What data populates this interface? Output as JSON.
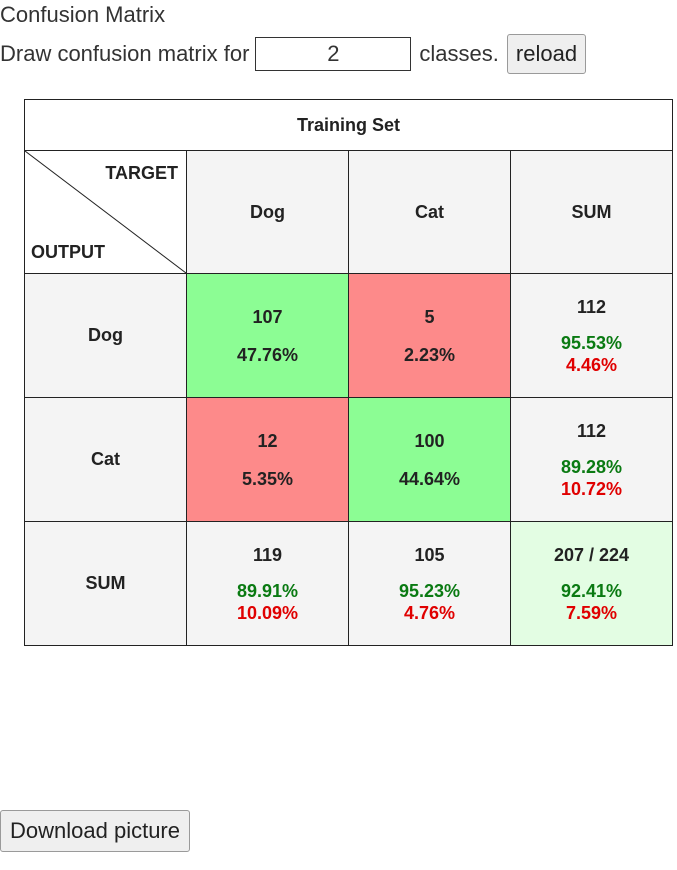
{
  "title": "Confusion Matrix",
  "controls": {
    "label_pre": "Draw confusion matrix for",
    "classes_value": "2",
    "label_post": "classes.",
    "reload_label": "reload"
  },
  "matrix": {
    "set_title": "Training Set",
    "target_label": "TARGET",
    "output_label": "OUTPUT",
    "columns": [
      "Dog",
      "Cat",
      "SUM"
    ],
    "rows": [
      {
        "label": "Dog",
        "cells": [
          {
            "count": "107",
            "pct": "47.76%"
          },
          {
            "count": "5",
            "pct": "2.23%"
          }
        ],
        "sum": {
          "count": "112",
          "good": "95.53%",
          "bad": "4.46%"
        }
      },
      {
        "label": "Cat",
        "cells": [
          {
            "count": "12",
            "pct": "5.35%"
          },
          {
            "count": "100",
            "pct": "44.64%"
          }
        ],
        "sum": {
          "count": "112",
          "good": "89.28%",
          "bad": "10.72%"
        }
      }
    ],
    "sum_row": {
      "label": "SUM",
      "cols": [
        {
          "count": "119",
          "good": "89.91%",
          "bad": "10.09%"
        },
        {
          "count": "105",
          "good": "95.23%",
          "bad": "4.76%"
        }
      ],
      "total": {
        "count": "207 / 224",
        "good": "92.41%",
        "bad": "7.59%"
      }
    },
    "colors": {
      "correct": "#8cfd94",
      "incorrect": "#fd8a8a",
      "total": "#e3fde3",
      "good_text": "#0a7a12",
      "bad_text": "#e00000"
    }
  },
  "download_label": "Download picture"
}
